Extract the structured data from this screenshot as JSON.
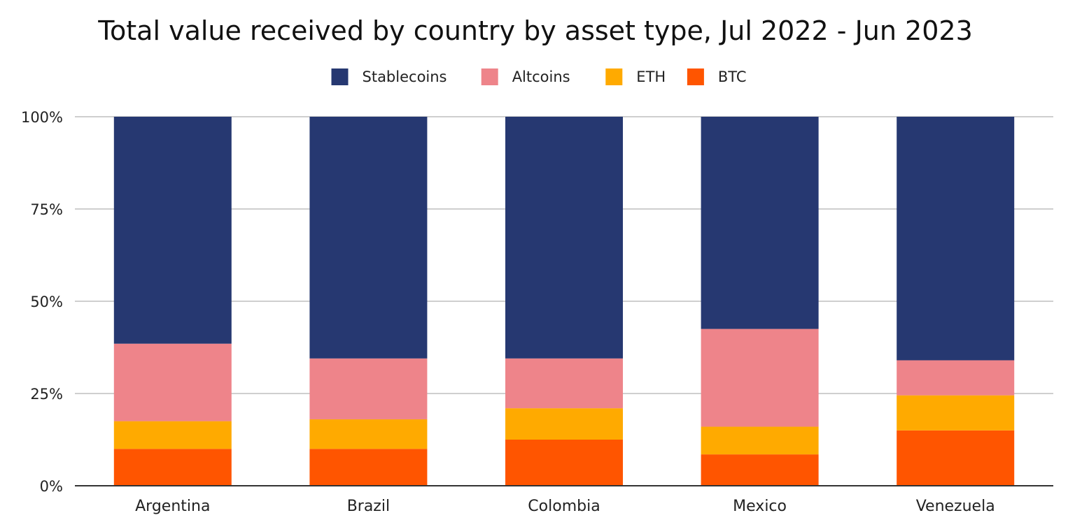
{
  "chart_data": {
    "type": "bar",
    "stacked": true,
    "title": "Total value received by country by asset type, Jul 2022 - Jun 2023",
    "xlabel": "",
    "ylabel": "",
    "ylim": [
      0,
      100
    ],
    "y_ticks": [
      "0%",
      "25%",
      "50%",
      "75%",
      "100%"
    ],
    "y_tick_values": [
      0,
      25,
      50,
      75,
      100
    ],
    "grid": true,
    "legend_position": "top",
    "categories": [
      "Argentina",
      "Brazil",
      "Colombia",
      "Mexico",
      "Venezuela"
    ],
    "series": [
      {
        "name": "BTC",
        "color": "#ff5500",
        "values": [
          10,
          10,
          12.5,
          8.5,
          15
        ]
      },
      {
        "name": "ETH",
        "color": "#ffaa00",
        "values": [
          7.5,
          8,
          8.5,
          7.5,
          9.5
        ]
      },
      {
        "name": "Altcoins",
        "color": "#ee848a",
        "values": [
          21,
          16.5,
          13.5,
          26.5,
          9.5
        ]
      },
      {
        "name": "Stablecoins",
        "color": "#263871",
        "values": [
          61.5,
          65.5,
          65.5,
          57.5,
          66
        ]
      }
    ],
    "legend_order": [
      "Stablecoins",
      "Altcoins",
      "ETH",
      "BTC"
    ]
  }
}
